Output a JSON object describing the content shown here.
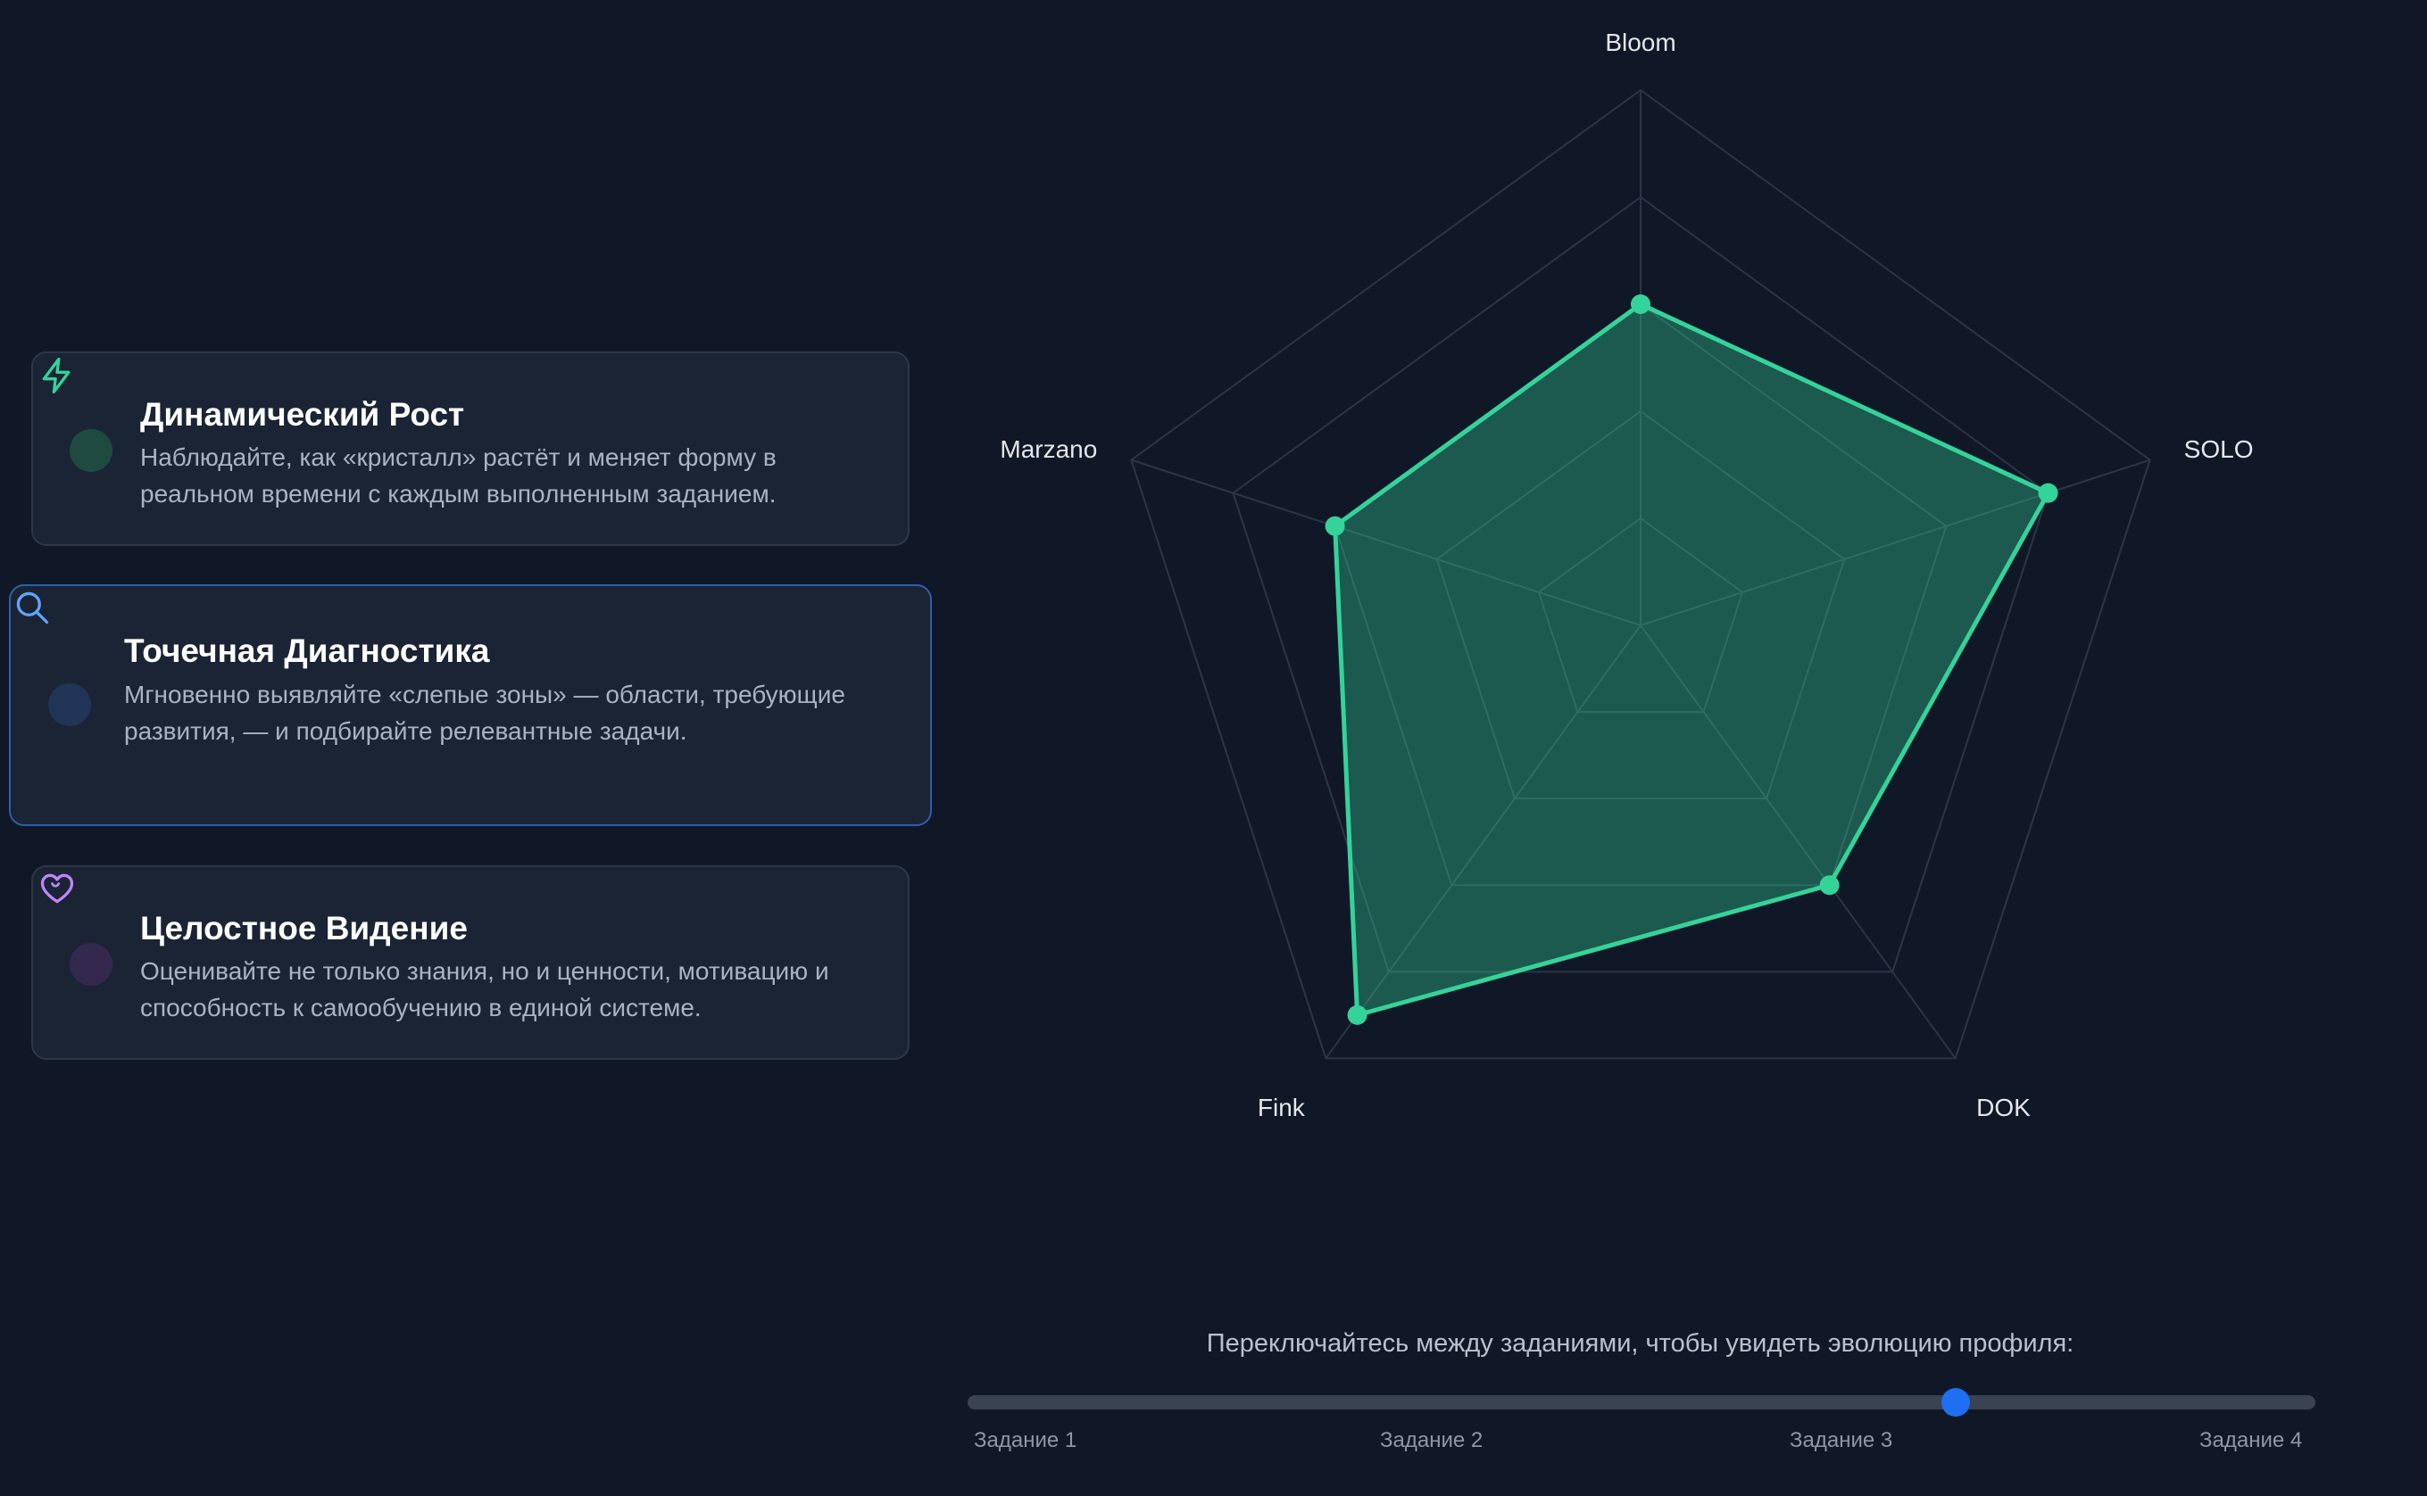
{
  "features": [
    {
      "title": "Динамический Рост",
      "description": "Наблюдайте, как «кристалл» растёт и меняет форму в реальном времени с каждым выполненным заданием.",
      "icon": "lightning-icon",
      "accent": "#34d399"
    },
    {
      "title": "Точечная Диагностика",
      "description": "Мгновенно выявляйте «слепые зоны» — области, требующие развития, — и подбирайте релевантные задачи.",
      "icon": "search-icon",
      "accent": "#60a5fa"
    },
    {
      "title": "Целостное Видение",
      "description": "Оценивайте не только знания, но и ценности, мотивацию и способность к самообучению в единой системе.",
      "icon": "heart-icon",
      "accent": "#c084fc"
    }
  ],
  "chart_data": {
    "type": "radar",
    "axes": [
      "Bloom",
      "SOLO",
      "DOK",
      "Fink",
      "Marzano"
    ],
    "rings": 5,
    "values": [
      0.6,
      0.8,
      0.6,
      0.9,
      0.6
    ],
    "max": 1,
    "color": "#34d399"
  },
  "controls": {
    "hint": "Переключайтесь между заданиями, чтобы увидеть эволюцию профиля:",
    "slider_labels": [
      "Задание 1",
      "Задание 2",
      "Задание 3",
      "Задание 4"
    ],
    "slider_value": 2.2,
    "slider_min": 0,
    "slider_max": 3,
    "slider_color": "#1e6ff2"
  }
}
